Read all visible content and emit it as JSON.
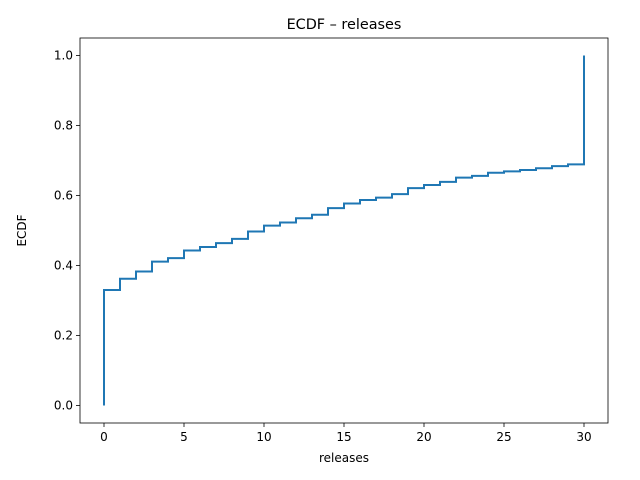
{
  "chart_data": {
    "type": "line",
    "title": "ECDF – releases",
    "xlabel": "releases",
    "ylabel": "ECDF",
    "xlim": [
      -1.5,
      31.5
    ],
    "ylim": [
      -0.05,
      1.05
    ],
    "xticks": [
      0,
      5,
      10,
      15,
      20,
      25,
      30
    ],
    "xtick_labels": [
      "0",
      "5",
      "10",
      "15",
      "20",
      "25",
      "30"
    ],
    "yticks": [
      0.0,
      0.2,
      0.4,
      0.6,
      0.8,
      1.0
    ],
    "ytick_labels": [
      "0.0",
      "0.2",
      "0.4",
      "0.6",
      "0.8",
      "1.0"
    ],
    "grid": false,
    "line_color": "#1f77b4",
    "step": "post",
    "series": [
      {
        "x": [
          0,
          1,
          2,
          3,
          4,
          5,
          6,
          7,
          8,
          9,
          10,
          11,
          12,
          13,
          14,
          15,
          16,
          17,
          18,
          19,
          20,
          21,
          22,
          23,
          24,
          25,
          26,
          27,
          28,
          29,
          30
        ],
        "y": [
          0.33,
          0.362,
          0.383,
          0.411,
          0.421,
          0.443,
          0.453,
          0.464,
          0.476,
          0.497,
          0.514,
          0.523,
          0.535,
          0.545,
          0.564,
          0.577,
          0.587,
          0.594,
          0.604,
          0.621,
          0.63,
          0.639,
          0.651,
          0.656,
          0.665,
          0.669,
          0.673,
          0.678,
          0.684,
          0.689,
          1.0
        ]
      }
    ]
  }
}
